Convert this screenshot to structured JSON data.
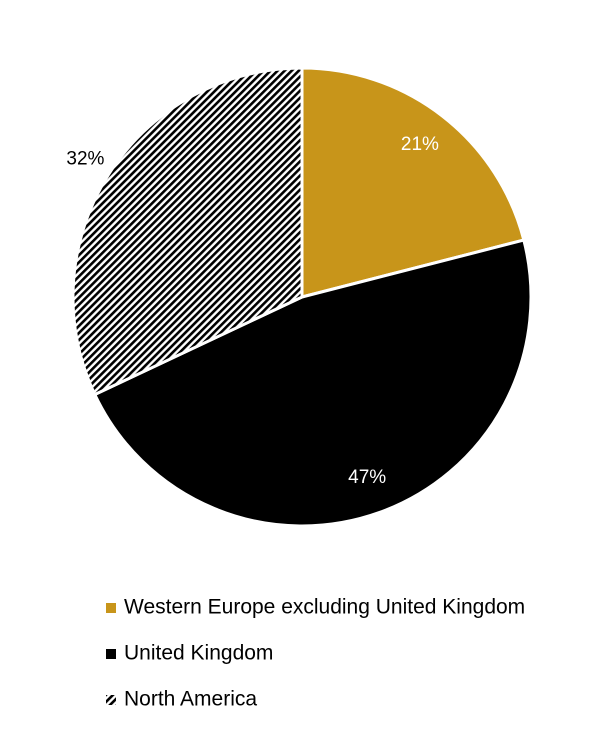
{
  "chart_data": {
    "type": "pie",
    "categories": [
      "Western Europe excluding United Kingdom",
      "United Kingdom",
      "North America"
    ],
    "values": [
      21,
      47,
      32
    ],
    "value_labels": [
      "21%",
      "47%",
      "32%"
    ],
    "colors": [
      "#c8951a",
      "#000000",
      "#000000"
    ],
    "hatch": [
      false,
      false,
      true
    ],
    "legend": "bottom"
  }
}
